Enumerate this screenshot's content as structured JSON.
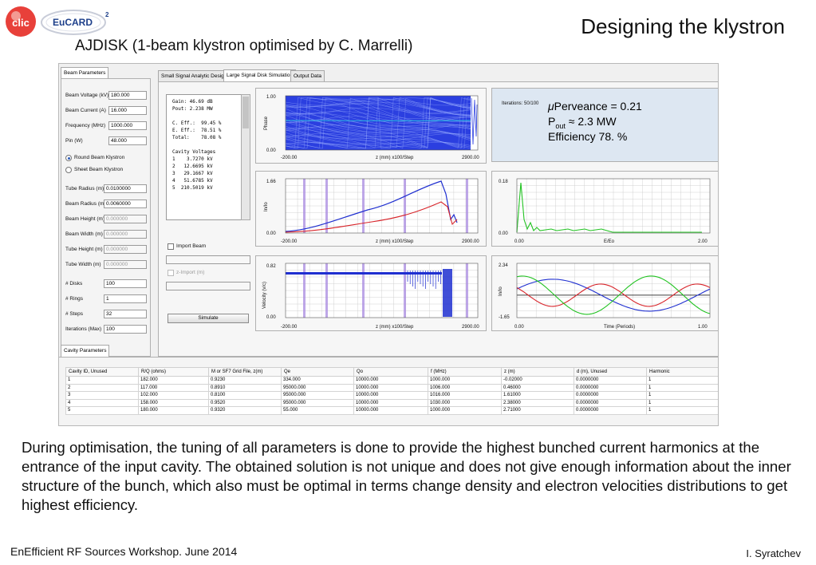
{
  "header": {
    "logo_clic": "clic",
    "logo_eucard": "EuCARD",
    "logo_eucard_sup": "2",
    "title": "Designing the klystron",
    "subtitle": "AJDISK (1-beam klystron optimised by C. Marrelli)"
  },
  "app": {
    "tabs": {
      "beam_parameters": "Beam Parameters",
      "small_signal": "Small Signal Analytic Design",
      "large_signal": "Large Signal Disk Simulation",
      "output_data": "Output Data",
      "cavity_parameters": "Cavity Parameters"
    },
    "beam": {
      "voltage_label": "Beam Voltage (kV)",
      "voltage": "180.000",
      "current_label": "Beam Current (A)",
      "current": "16.000",
      "frequency_label": "Frequency (MHz)",
      "frequency": "1000.000",
      "pin_label": "Pin (W)",
      "pin": "48.000",
      "round_label": "Round Beam Klystron",
      "sheet_label": "Sheet Beam Klystron",
      "tube_radius_label": "Tube Radius (m)",
      "tube_radius": "0.0100000",
      "beam_radius_label": "Beam Radius (m)",
      "beam_radius": "0.0060000",
      "beam_height_label": "Beam Height (m)",
      "beam_height": "0.000000",
      "beam_width_label": "Beam Width (m)",
      "beam_width": "0.000000",
      "tube_height_label": "Tube Height (m)",
      "tube_height": "0.000000",
      "tube_width_label": "Tube Width (m)",
      "tube_width": "0.000000",
      "disks_label": "# Disks",
      "disks": "100",
      "rings_label": "# Rings",
      "rings": "1",
      "steps_label": "# Steps",
      "steps": "32",
      "iterations_label": "Iterations (Max)",
      "iterations": "100"
    },
    "results": {
      "gain": "Gain: 46.69 dB",
      "pout": "Pout: 2.238 MW",
      "c_eff": "C. Eff.:  99.45 %",
      "e_eff": "E. Eff.:  78.51 %",
      "total": "Total:    78.08 %",
      "cav_header": "Cavity Voltages",
      "cav_voltages": [
        "1    3.7270 kV",
        "2   12.6695 kV",
        "3   29.1667 kV",
        "4   51.6785 kV",
        "5  210.5019 kV"
      ]
    },
    "import_beam_label": "Import Beam",
    "z_import_label": "z-Import (m)",
    "simulate_label": "Simulate",
    "plots": {
      "phase": {
        "ylabel": "Phase",
        "ymax": "1.00",
        "ymin": "0.00",
        "xmin": "-200.00",
        "xlabel": "z (mm)  x100/Step",
        "xmax": "2900.00"
      },
      "current": {
        "ylabel": "In/Io",
        "ymax": "1.66",
        "ymin": "0.00",
        "xmin": "-200.00",
        "xlabel": "z (mm)  x100/Step",
        "xmax": "2900.00"
      },
      "velocity": {
        "ylabel": "Velocity (v/c)",
        "ymax": "0.82",
        "ymin": "0.00",
        "xmin": "-200.00",
        "xlabel": "z (mm)  x100/Step",
        "xmax": "2900.00"
      },
      "spectrum": {
        "ymax": "0.18",
        "ymin": "0.00",
        "xmin": "0.00",
        "xlabel": "E/Eo",
        "xmax": "2.00"
      },
      "harmonics": {
        "ylabel": "In/Io",
        "ymax": "2.34",
        "ymin": "-1.65",
        "xmin": "0.00",
        "xlabel": "Time (Periods)",
        "xmax": "1.00"
      }
    },
    "info": {
      "iterations": "Iterations: 50/100",
      "mu": "μ",
      "perveance": "Perveance = 0.21",
      "pout_p": "P",
      "pout_sub": "out",
      "pout_val": " ≈ 2.3 MW",
      "efficiency": "Efficiency 78. %"
    },
    "cavity_table": {
      "headers": [
        "Cavity ID, Unused",
        "R/Q (ohms)",
        "M or SF7 Grid File, z(m)",
        "Qe",
        "Qo",
        "f (MHz)",
        "z (m)",
        "d (m), Unused",
        "Harmonic"
      ],
      "rows": [
        [
          "1",
          "182.000",
          "0.9230",
          "334.000",
          "10000.000",
          "1000.000",
          "-0.02000",
          "0.0000000",
          "1"
        ],
        [
          "2",
          "117.000",
          "0.8910",
          "95000.000",
          "10000.000",
          "1006.000",
          "0.46000",
          "0.0000000",
          "1"
        ],
        [
          "3",
          "102.000",
          "0.8100",
          "95000.000",
          "10000.000",
          "1016.000",
          "1.61000",
          "0.0000000",
          "1"
        ],
        [
          "4",
          "158.000",
          "0.9520",
          "95000.000",
          "10000.000",
          "1030.000",
          "2.38000",
          "0.0000000",
          "1"
        ],
        [
          "5",
          "180.000",
          "0.9320",
          "55.000",
          "10000.000",
          "1000.000",
          "2.71000",
          "0.0000000",
          "1"
        ]
      ]
    }
  },
  "description": "During optimisation, the tuning of all parameters is done to provide the highest bunched current harmonics at the entrance of the input cavity. The obtained solution is not unique and does not give enough information about the inner structure of the bunch, which also must be optimal in terms change density and electron velocities distributions to get highest efficiency.",
  "footer": {
    "left": "EnEfficient RF Sources Workshop. June 2014",
    "right": "I. Syratchev"
  },
  "colors": {
    "blue": "#1f2fd0",
    "red": "#d8242a",
    "green": "#22c322",
    "cyan": "#28a8e0",
    "cavity": "#a889e0"
  }
}
